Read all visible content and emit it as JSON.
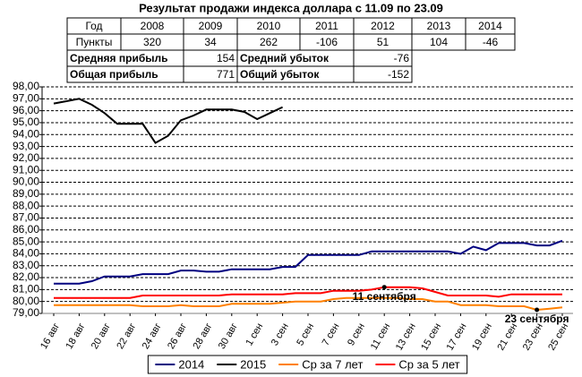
{
  "title": "Результат продажи индекса доллара с 11.09 по 23.09",
  "table": {
    "header": [
      "Год",
      "2008",
      "2009",
      "2010",
      "2011",
      "2012",
      "2013",
      "2014"
    ],
    "points_label": "Пункты",
    "points": [
      320,
      34,
      262,
      -106,
      51,
      104,
      -46
    ],
    "stats": [
      {
        "profit_label": "Средняя прибыль",
        "profit": 154,
        "loss_label": "Средний убыток",
        "loss": -76
      },
      {
        "profit_label": "Общая прибыль",
        "profit": 771,
        "loss_label": "Общий убыток",
        "loss": -152
      }
    ]
  },
  "chart_data": {
    "type": "line",
    "categories": [
      "16 авг",
      null,
      "18 авг",
      null,
      "20 авг",
      null,
      "22 авг",
      null,
      "24 авг",
      null,
      "26 авг",
      null,
      "28 авг",
      null,
      "30 авг",
      null,
      "1 сен",
      null,
      "3 сен",
      null,
      "5 сен",
      null,
      "7 сен",
      null,
      "9 сен",
      null,
      "11 сен",
      null,
      "13 сен",
      null,
      "15 сен",
      null,
      "17 сен",
      null,
      "19 сен",
      null,
      "21 сен",
      null,
      "23 сен",
      null,
      "25 сен"
    ],
    "series": [
      {
        "name": "2014",
        "color": "#000080",
        "values": [
          81.5,
          81.5,
          81.5,
          81.7,
          82.1,
          82.1,
          82.1,
          82.3,
          82.3,
          82.3,
          82.6,
          82.6,
          82.5,
          82.5,
          82.7,
          82.7,
          82.7,
          82.7,
          82.9,
          82.9,
          83.9,
          83.9,
          83.9,
          83.9,
          83.9,
          84.2,
          84.2,
          84.2,
          84.2,
          84.2,
          84.2,
          84.2,
          84.0,
          84.6,
          84.3,
          84.9,
          84.9,
          84.9,
          84.7,
          84.7,
          85.1
        ]
      },
      {
        "name": "2015",
        "color": "#000000",
        "values": [
          96.6,
          96.8,
          97.0,
          96.5,
          95.8,
          94.9,
          94.9,
          94.9,
          93.3,
          93.9,
          95.2,
          95.6,
          96.1,
          96.1,
          96.1,
          95.9,
          95.3,
          95.8,
          96.3,
          null,
          null,
          null,
          null,
          null,
          null,
          null,
          null,
          null,
          null,
          null,
          null,
          null,
          null,
          null,
          null,
          null,
          null,
          null,
          null,
          null,
          null
        ]
      },
      {
        "name": "Ср за 7 лет",
        "color": "#ff8000",
        "values": [
          79.7,
          79.7,
          79.7,
          79.7,
          79.7,
          79.7,
          79.7,
          79.6,
          79.6,
          79.6,
          79.7,
          79.6,
          79.6,
          79.6,
          79.8,
          79.8,
          79.8,
          79.8,
          79.9,
          80.0,
          80.0,
          80.0,
          80.2,
          80.3,
          80.3,
          80.3,
          80.3,
          80.3,
          80.2,
          80.2,
          80.0,
          80.0,
          79.7,
          79.7,
          79.7,
          79.6,
          79.6,
          79.6,
          79.3,
          79.4,
          79.5
        ]
      },
      {
        "name": "Ср за 5 лет",
        "color": "#ff0000",
        "values": [
          80.3,
          80.3,
          80.3,
          80.3,
          80.3,
          80.3,
          80.3,
          80.5,
          80.5,
          80.5,
          80.5,
          80.5,
          80.5,
          80.5,
          80.6,
          80.6,
          80.6,
          80.6,
          80.6,
          80.7,
          80.7,
          80.7,
          80.9,
          80.9,
          80.9,
          81.0,
          81.2,
          81.2,
          81.2,
          81.1,
          80.8,
          80.5,
          80.5,
          80.5,
          80.5,
          80.4,
          80.6,
          80.6,
          80.6,
          80.6,
          80.6
        ]
      }
    ],
    "annotations": [
      {
        "text": "11 сентября",
        "category": "11 сен",
        "series": "Ср за 5 лет"
      },
      {
        "text": "23 сентября",
        "category": "23 сен",
        "series": "Ср за 7 лет"
      }
    ],
    "ylim": [
      79,
      98
    ],
    "yticks": [
      {
        "value": 79,
        "label": "79,00"
      },
      {
        "value": 80,
        "label": "80,00"
      },
      {
        "value": 81,
        "label": "81,00"
      },
      {
        "value": 82,
        "label": "82,00"
      },
      {
        "value": 83,
        "label": "83,00"
      },
      {
        "value": 84,
        "label": "84,00"
      },
      {
        "value": 85,
        "label": "85,00"
      },
      {
        "value": 86,
        "label": "86,00"
      },
      {
        "value": 87,
        "label": "87,00"
      },
      {
        "value": 88,
        "label": "88,00"
      },
      {
        "value": 89,
        "label": "89,00"
      },
      {
        "value": 90,
        "label": "90,00"
      },
      {
        "value": 91,
        "label": "91,00"
      },
      {
        "value": 92,
        "label": "92,00"
      },
      {
        "value": 93,
        "label": "93,00"
      },
      {
        "value": 94,
        "label": "94,00"
      },
      {
        "value": 95,
        "label": "95,00"
      },
      {
        "value": 96,
        "label": "96,00"
      },
      {
        "value": 97,
        "label": "97,00"
      },
      {
        "value": 98,
        "label": "98,00"
      }
    ],
    "grid": true,
    "legend": "bottom"
  }
}
